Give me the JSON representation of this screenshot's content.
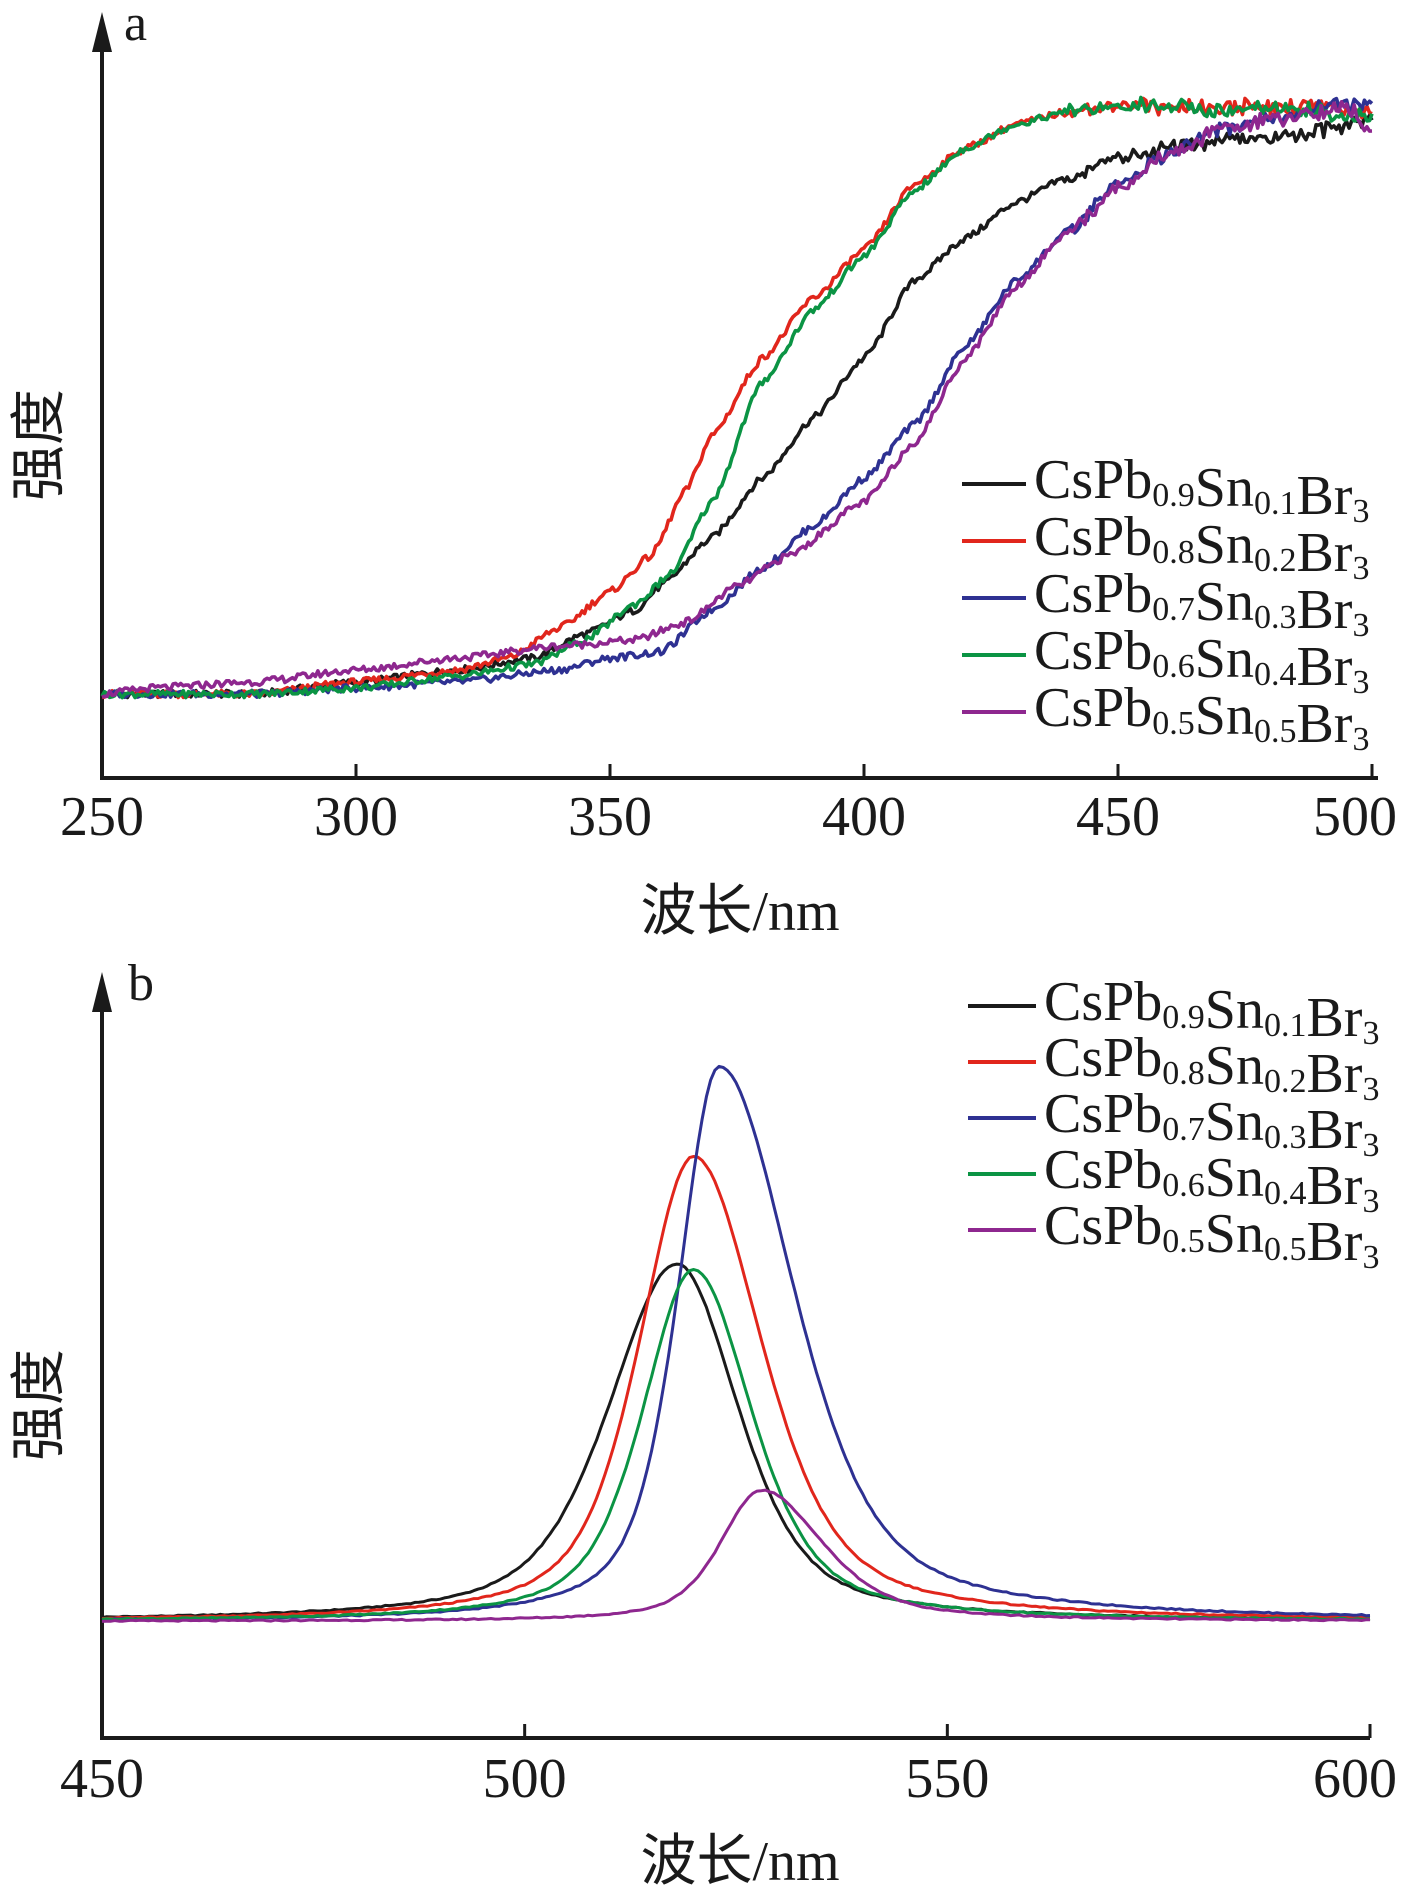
{
  "chart_data": [
    {
      "type": "line",
      "panel_label": "a",
      "xlabel": "波长/nm",
      "ylabel": "强度",
      "xlim": [
        250,
        500
      ],
      "ylim": [
        0,
        1.05
      ],
      "xticks": [
        250,
        300,
        350,
        400,
        450,
        500
      ],
      "legend_position": "center-right",
      "series": [
        {
          "name": "CsPb0.9Sn0.1Br3",
          "color": "#1a1a1a",
          "points": [
            [
              250,
              0.04
            ],
            [
              280,
              0.04
            ],
            [
              300,
              0.06
            ],
            [
              320,
              0.08
            ],
            [
              335,
              0.1
            ],
            [
              345,
              0.14
            ],
            [
              355,
              0.18
            ],
            [
              360,
              0.22
            ],
            [
              370,
              0.3
            ],
            [
              380,
              0.4
            ],
            [
              390,
              0.5
            ],
            [
              400,
              0.6
            ],
            [
              410,
              0.73
            ],
            [
              420,
              0.8
            ],
            [
              430,
              0.86
            ],
            [
              440,
              0.9
            ],
            [
              450,
              0.93
            ],
            [
              460,
              0.95
            ],
            [
              470,
              0.96
            ],
            [
              480,
              0.97
            ],
            [
              490,
              0.98
            ],
            [
              500,
              1.0
            ]
          ]
        },
        {
          "name": "CsPb0.8Sn0.2Br3",
          "color": "#e1261c",
          "points": [
            [
              250,
              0.04
            ],
            [
              280,
              0.04
            ],
            [
              300,
              0.06
            ],
            [
              320,
              0.08
            ],
            [
              330,
              0.1
            ],
            [
              340,
              0.15
            ],
            [
              350,
              0.21
            ],
            [
              358,
              0.27
            ],
            [
              365,
              0.38
            ],
            [
              370,
              0.47
            ],
            [
              380,
              0.6
            ],
            [
              390,
              0.7
            ],
            [
              400,
              0.78
            ],
            [
              410,
              0.89
            ],
            [
              420,
              0.95
            ],
            [
              430,
              0.99
            ],
            [
              440,
              1.01
            ],
            [
              450,
              1.02
            ],
            [
              460,
              1.02
            ],
            [
              470,
              1.02
            ],
            [
              480,
              1.02
            ],
            [
              490,
              1.02
            ],
            [
              500,
              1.01
            ]
          ]
        },
        {
          "name": "CsPb0.7Sn0.3Br3",
          "color": "#2e3192",
          "points": [
            [
              250,
              0.04
            ],
            [
              280,
              0.04
            ],
            [
              300,
              0.05
            ],
            [
              320,
              0.06
            ],
            [
              340,
              0.08
            ],
            [
              350,
              0.1
            ],
            [
              360,
              0.11
            ],
            [
              370,
              0.18
            ],
            [
              380,
              0.25
            ],
            [
              390,
              0.32
            ],
            [
              400,
              0.4
            ],
            [
              410,
              0.49
            ],
            [
              420,
              0.62
            ],
            [
              430,
              0.73
            ],
            [
              440,
              0.81
            ],
            [
              450,
              0.89
            ],
            [
              460,
              0.94
            ],
            [
              470,
              0.98
            ],
            [
              480,
              1.0
            ],
            [
              490,
              1.02
            ],
            [
              500,
              1.03
            ]
          ]
        },
        {
          "name": "CsPb0.6Sn0.4Br3",
          "color": "#0b9444",
          "points": [
            [
              250,
              0.04
            ],
            [
              280,
              0.04
            ],
            [
              300,
              0.05
            ],
            [
              320,
              0.07
            ],
            [
              335,
              0.09
            ],
            [
              345,
              0.13
            ],
            [
              355,
              0.19
            ],
            [
              362,
              0.24
            ],
            [
              370,
              0.36
            ],
            [
              380,
              0.56
            ],
            [
              390,
              0.68
            ],
            [
              400,
              0.77
            ],
            [
              410,
              0.88
            ],
            [
              420,
              0.95
            ],
            [
              430,
              0.99
            ],
            [
              440,
              1.01
            ],
            [
              450,
              1.02
            ],
            [
              460,
              1.02
            ],
            [
              470,
              1.01
            ],
            [
              480,
              1.02
            ],
            [
              490,
              1.01
            ],
            [
              500,
              1.0
            ]
          ]
        },
        {
          "name": "CsPb0.5Sn0.5Br3",
          "color": "#8e278f",
          "points": [
            [
              250,
              0.04
            ],
            [
              260,
              0.05
            ],
            [
              280,
              0.06
            ],
            [
              300,
              0.08
            ],
            [
              320,
              0.1
            ],
            [
              340,
              0.12
            ],
            [
              355,
              0.13
            ],
            [
              365,
              0.16
            ],
            [
              375,
              0.22
            ],
            [
              385,
              0.27
            ],
            [
              400,
              0.36
            ],
            [
              410,
              0.46
            ],
            [
              420,
              0.6
            ],
            [
              430,
              0.72
            ],
            [
              440,
              0.81
            ],
            [
              450,
              0.88
            ],
            [
              460,
              0.94
            ],
            [
              470,
              0.98
            ],
            [
              480,
              1.0
            ],
            [
              490,
              1.01
            ],
            [
              495,
              1.02
            ],
            [
              500,
              0.98
            ]
          ]
        }
      ]
    },
    {
      "type": "line",
      "panel_label": "b",
      "xlabel": "波长/nm",
      "ylabel": "强度",
      "xlim": [
        450,
        600
      ],
      "ylim": [
        0,
        1.05
      ],
      "xticks": [
        450,
        500,
        550,
        600
      ],
      "legend_position": "top-right",
      "series": [
        {
          "name": "CsPb0.9Sn0.1Br3",
          "color": "#1a1a1a",
          "peak_x": 518,
          "peak_y": 0.6,
          "hw_left": 10,
          "hw_right": 9
        },
        {
          "name": "CsPb0.8Sn0.2Br3",
          "color": "#e1261c",
          "peak_x": 520,
          "peak_y": 0.78,
          "hw_left": 8,
          "hw_right": 10
        },
        {
          "name": "CsPb0.7Sn0.3Br3",
          "color": "#2e3192",
          "peak_x": 523,
          "peak_y": 0.93,
          "hw_left": 6,
          "hw_right": 11
        },
        {
          "name": "CsPb0.6Sn0.4Br3",
          "color": "#0b9444",
          "peak_x": 520,
          "peak_y": 0.59,
          "hw_left": 7.5,
          "hw_right": 8.5
        },
        {
          "name": "CsPb0.5Sn0.5Br3",
          "color": "#8e278f",
          "peak_x": 528,
          "peak_y": 0.22,
          "hw_left": 6,
          "hw_right": 9
        }
      ]
    }
  ],
  "legend_a": [
    {
      "base": "CsPb",
      "s1": "0.9",
      "mid": "Sn",
      "s2": "0.1",
      "end": "Br",
      "s3": "3"
    },
    {
      "base": "CsPb",
      "s1": "0.8",
      "mid": "Sn",
      "s2": "0.2",
      "end": "Br",
      "s3": "3"
    },
    {
      "base": "CsPb",
      "s1": "0.7",
      "mid": "Sn",
      "s2": "0.3",
      "end": "Br",
      "s3": "3"
    },
    {
      "base": "CsPb",
      "s1": "0.6",
      "mid": "Sn",
      "s2": "0.4",
      "end": "Br",
      "s3": "3"
    },
    {
      "base": "CsPb",
      "s1": "0.5",
      "mid": "Sn",
      "s2": "0.5",
      "end": "Br",
      "s3": "3"
    }
  ]
}
